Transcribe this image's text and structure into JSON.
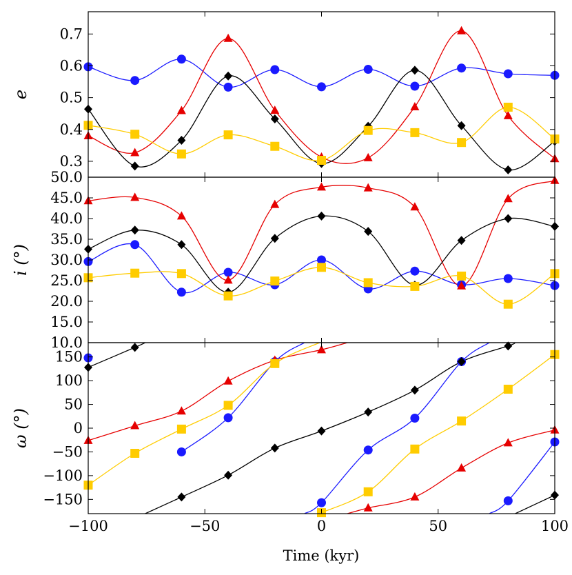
{
  "chart_data": {
    "type": "line",
    "xlabel": "Time (kyr)",
    "xlim": [
      -100,
      100
    ],
    "xticks": [
      -100,
      -50,
      0,
      50,
      100
    ],
    "xtick_labels": [
      "−100",
      "−50",
      "0",
      "50",
      "100"
    ],
    "marker_x": [
      -100,
      -80,
      -60,
      -40,
      -20,
      0,
      20,
      40,
      60,
      80,
      100
    ],
    "series_styles": [
      {
        "key": "blue",
        "color": "#1a1aff",
        "marker": "circle"
      },
      {
        "key": "red",
        "color": "#e60000",
        "marker": "triangle"
      },
      {
        "key": "black",
        "color": "#000000",
        "marker": "diamond"
      },
      {
        "key": "gold",
        "color": "#ffcc00",
        "marker": "square"
      }
    ],
    "panels": [
      {
        "name": "eccentricity",
        "ylabel": "e",
        "ylim": [
          0.25,
          0.77
        ],
        "yticks": [
          0.3,
          0.4,
          0.5,
          0.6,
          0.7
        ],
        "ytick_labels": [
          "0.3",
          "0.4",
          "0.5",
          "0.6",
          "0.7"
        ],
        "series": [
          {
            "key": "blue",
            "values": [
              0.597,
              0.554,
              0.621,
              0.533,
              0.588,
              0.534,
              0.589,
              0.536,
              0.593,
              0.575,
              0.57
            ]
          },
          {
            "key": "red",
            "values": [
              0.38,
              0.327,
              0.459,
              0.686,
              0.46,
              0.313,
              0.311,
              0.471,
              0.71,
              0.443,
              0.308
            ]
          },
          {
            "key": "black",
            "values": [
              0.464,
              0.285,
              0.366,
              0.568,
              0.433,
              0.293,
              0.41,
              0.586,
              0.412,
              0.273,
              0.363
            ]
          },
          {
            "key": "gold",
            "values": [
              0.413,
              0.385,
              0.323,
              0.383,
              0.347,
              0.303,
              0.397,
              0.39,
              0.359,
              0.47,
              0.37
            ]
          }
        ]
      },
      {
        "name": "inclination",
        "ylabel": "i (°)",
        "ylim": [
          10,
          50
        ],
        "yticks": [
          10,
          15,
          20,
          25,
          30,
          35,
          40,
          45,
          50
        ],
        "ytick_labels": [
          "10.0",
          "15.0",
          "20.0",
          "25.0",
          "30.0",
          "35.0",
          "40.0",
          "45.0",
          "50.0"
        ],
        "series": [
          {
            "key": "blue",
            "values": [
              29.6,
              33.7,
              22.2,
              27.0,
              24.0,
              30.0,
              23.0,
              27.3,
              24.0,
              25.5,
              23.8
            ]
          },
          {
            "key": "red",
            "values": [
              44.3,
              45.1,
              40.6,
              25.1,
              43.4,
              47.6,
              47.4,
              42.8,
              23.7,
              44.8,
              49.2
            ]
          },
          {
            "key": "black",
            "values": [
              32.6,
              37.2,
              33.7,
              22.2,
              35.2,
              40.6,
              36.9,
              23.9,
              34.7,
              40.0,
              38.1
            ]
          },
          {
            "key": "gold",
            "values": [
              25.7,
              26.8,
              26.7,
              21.3,
              24.9,
              28.2,
              24.5,
              23.6,
              26.1,
              19.3,
              26.7
            ]
          }
        ]
      },
      {
        "name": "argument-of-periapsis",
        "ylabel": "ω (°)",
        "ylim": [
          -180,
          180
        ],
        "yticks": [
          -150,
          -100,
          -50,
          0,
          50,
          100,
          150
        ],
        "ytick_labels": [
          "−150",
          "−100",
          "−50",
          "0",
          "50",
          "100",
          "150"
        ],
        "series": [
          {
            "key": "blue",
            "values": [
              148,
              null,
              -50,
              22,
              140,
              -157,
              -46,
              21,
              140,
              -153,
              -29
            ]
          },
          {
            "key": "red",
            "values": [
              -26,
              5,
              36,
              99,
              143,
              165,
              -168,
              -145,
              -84,
              -31,
              -4
            ]
          },
          {
            "key": "black",
            "values": [
              128,
              170,
              -145,
              -99,
              -42,
              -6,
              34,
              80,
              140,
              173,
              -141
            ]
          },
          {
            "key": "gold",
            "values": [
              -120,
              -53,
              -2,
              48,
              136,
              -178,
              -134,
              -44,
              15,
              82,
              155
            ]
          }
        ]
      }
    ]
  }
}
